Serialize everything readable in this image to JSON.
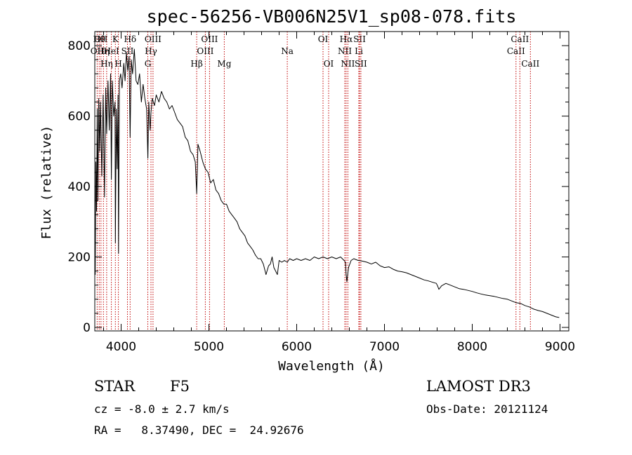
{
  "chart_data": {
    "type": "line",
    "title": "spec-56256-VB006N25V1_sp08-078.fits",
    "xlabel": "Wavelength (Å)",
    "ylabel": "Flux (relative)",
    "xlim": [
      3700,
      9100
    ],
    "ylim": [
      -10,
      840
    ],
    "x_ticks": [
      4000,
      5000,
      6000,
      7000,
      8000,
      9000
    ],
    "y_ticks": [
      0,
      200,
      400,
      600,
      800
    ],
    "series": [
      {
        "name": "spectrum",
        "x": [
          3700,
          3705,
          3712,
          3720,
          3728,
          3735,
          3745,
          3755,
          3765,
          3780,
          3795,
          3810,
          3825,
          3835,
          3850,
          3865,
          3880,
          3889,
          3900,
          3915,
          3930,
          3934,
          3945,
          3955,
          3965,
          3970,
          3980,
          3995,
          4010,
          4030,
          4045,
          4060,
          4075,
          4090,
          4102,
          4115,
          4130,
          4150,
          4170,
          4190,
          4210,
          4230,
          4250,
          4270,
          4290,
          4305,
          4315,
          4330,
          4340,
          4355,
          4380,
          4400,
          4430,
          4460,
          4490,
          4520,
          4550,
          4580,
          4610,
          4640,
          4670,
          4700,
          4730,
          4760,
          4790,
          4820,
          4845,
          4861,
          4875,
          4900,
          4930,
          4960,
          4990,
          5020,
          5050,
          5080,
          5110,
          5140,
          5170,
          5200,
          5230,
          5260,
          5290,
          5320,
          5350,
          5380,
          5410,
          5440,
          5470,
          5500,
          5530,
          5560,
          5590,
          5620,
          5650,
          5680,
          5700,
          5720,
          5740,
          5760,
          5780,
          5800,
          5830,
          5860,
          5893,
          5920,
          5960,
          6000,
          6050,
          6100,
          6150,
          6200,
          6250,
          6300,
          6350,
          6400,
          6450,
          6500,
          6540,
          6555,
          6563,
          6572,
          6590,
          6620,
          6650,
          6700,
          6750,
          6800,
          6850,
          6900,
          6950,
          7000,
          7050,
          7100,
          7150,
          7200,
          7250,
          7300,
          7350,
          7400,
          7450,
          7500,
          7550,
          7590,
          7605,
          7620,
          7650,
          7700,
          7750,
          7800,
          7850,
          7900,
          7950,
          8000,
          8050,
          8100,
          8150,
          8200,
          8250,
          8300,
          8350,
          8400,
          8450,
          8500,
          8550,
          8600,
          8650,
          8700,
          8750,
          8800,
          8850,
          8900,
          8950,
          8990
        ],
        "y": [
          260,
          150,
          470,
          330,
          620,
          360,
          650,
          500,
          640,
          430,
          660,
          370,
          680,
          550,
          700,
          560,
          720,
          420,
          700,
          600,
          640,
          240,
          620,
          450,
          660,
          210,
          700,
          720,
          680,
          750,
          700,
          780,
          730,
          770,
          540,
          760,
          720,
          790,
          700,
          690,
          720,
          640,
          690,
          650,
          620,
          480,
          640,
          560,
          610,
          650,
          630,
          660,
          640,
          670,
          650,
          640,
          620,
          630,
          610,
          590,
          580,
          570,
          540,
          530,
          500,
          490,
          470,
          380,
          520,
          500,
          470,
          450,
          440,
          410,
          420,
          390,
          380,
          360,
          350,
          350,
          330,
          320,
          310,
          300,
          280,
          270,
          260,
          240,
          230,
          220,
          205,
          195,
          195,
          180,
          150,
          175,
          180,
          200,
          170,
          160,
          150,
          190,
          185,
          190,
          185,
          195,
          190,
          195,
          190,
          195,
          190,
          200,
          195,
          200,
          195,
          200,
          195,
          200,
          190,
          185,
          150,
          130,
          170,
          190,
          195,
          190,
          188,
          185,
          180,
          185,
          175,
          170,
          172,
          165,
          160,
          158,
          155,
          150,
          145,
          140,
          135,
          132,
          128,
          125,
          118,
          108,
          118,
          125,
          120,
          115,
          110,
          108,
          105,
          102,
          98,
          95,
          92,
          90,
          88,
          85,
          82,
          80,
          75,
          70,
          68,
          62,
          58,
          52,
          48,
          45,
          40,
          35,
          30,
          28
        ]
      }
    ],
    "lines": [
      {
        "wl": 3727,
        "label": "OII",
        "row": 2
      },
      {
        "wl": 3750,
        "label": "Hθ",
        "row": 1
      },
      {
        "wl": 3770,
        "label": "OII",
        "row": 1
      },
      {
        "wl": 3798,
        "label": "Hη",
        "row": 2
      },
      {
        "wl": 3835,
        "label": "Hη",
        "row": 3
      },
      {
        "wl": 3889,
        "label": "HeI",
        "row": 2
      },
      {
        "wl": 3934,
        "label": "K",
        "row": 1
      },
      {
        "wl": 3969,
        "label": "H",
        "row": 3
      },
      {
        "wl": 4072,
        "label": "SII",
        "row": 2
      },
      {
        "wl": 4102,
        "label": "Hδ",
        "row": 1
      },
      {
        "wl": 4304,
        "label": "G",
        "row": 3
      },
      {
        "wl": 4340,
        "label": "Hγ",
        "row": 2
      },
      {
        "wl": 4363,
        "label": "OIII",
        "row": 1
      },
      {
        "wl": 4861,
        "label": "Hβ",
        "row": 3
      },
      {
        "wl": 4959,
        "label": "OIII",
        "row": 2
      },
      {
        "wl": 5007,
        "label": "OIII",
        "row": 1
      },
      {
        "wl": 5175,
        "label": "Mg",
        "row": 3
      },
      {
        "wl": 5893,
        "label": "Na",
        "row": 2
      },
      {
        "wl": 6300,
        "label": "OI",
        "row": 1
      },
      {
        "wl": 6364,
        "label": "OI",
        "row": 3
      },
      {
        "wl": 6548,
        "label": "NII",
        "row": 2
      },
      {
        "wl": 6563,
        "label": "Hα",
        "row": 1
      },
      {
        "wl": 6583,
        "label": "NII",
        "row": 3
      },
      {
        "wl": 6708,
        "label": "Li",
        "row": 2
      },
      {
        "wl": 6716,
        "label": "SII",
        "row": 1
      },
      {
        "wl": 6731,
        "label": "SII",
        "row": 3
      },
      {
        "wl": 8498,
        "label": "CaII",
        "row": 2
      },
      {
        "wl": 8542,
        "label": "CaII",
        "row": 1
      },
      {
        "wl": 8662,
        "label": "CaII",
        "row": 3
      }
    ]
  },
  "footer": {
    "class_label": "STAR",
    "subclass": "F5",
    "survey": "LAMOST DR3",
    "cz": "cz = -8.0 ± 2.7 km/s",
    "obs_date": "Obs-Date: 20121124",
    "coords": "RA =   8.37490, DEC =  24.92676"
  }
}
